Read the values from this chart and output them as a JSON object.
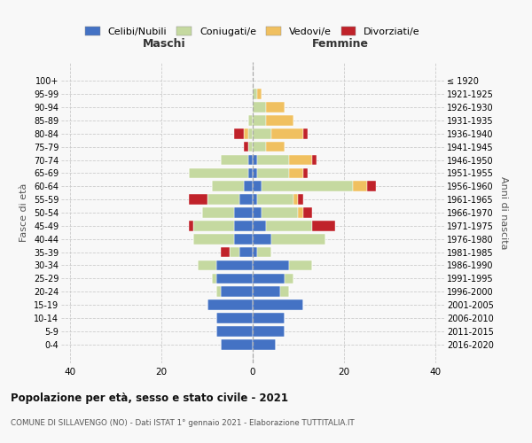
{
  "age_groups": [
    "100+",
    "95-99",
    "90-94",
    "85-89",
    "80-84",
    "75-79",
    "70-74",
    "65-69",
    "60-64",
    "55-59",
    "50-54",
    "45-49",
    "40-44",
    "35-39",
    "30-34",
    "25-29",
    "20-24",
    "15-19",
    "10-14",
    "5-9",
    "0-4"
  ],
  "birth_years": [
    "≤ 1920",
    "1921-1925",
    "1926-1930",
    "1931-1935",
    "1936-1940",
    "1941-1945",
    "1946-1950",
    "1951-1955",
    "1956-1960",
    "1961-1965",
    "1966-1970",
    "1971-1975",
    "1976-1980",
    "1981-1985",
    "1986-1990",
    "1991-1995",
    "1996-2000",
    "2001-2005",
    "2006-2010",
    "2011-2015",
    "2016-2020"
  ],
  "colors": {
    "celibi": "#4472c4",
    "coniugati": "#c5d9a0",
    "vedovi": "#f0c060",
    "divorziati": "#c0222a"
  },
  "males": {
    "celibi": [
      0,
      0,
      0,
      0,
      0,
      0,
      1,
      1,
      2,
      3,
      4,
      4,
      4,
      3,
      8,
      8,
      7,
      10,
      8,
      8,
      7
    ],
    "coniugati": [
      0,
      0,
      0,
      1,
      1,
      1,
      6,
      13,
      7,
      7,
      7,
      9,
      9,
      2,
      4,
      1,
      1,
      0,
      0,
      0,
      0
    ],
    "vedovi": [
      0,
      0,
      0,
      0,
      1,
      0,
      0,
      0,
      0,
      0,
      0,
      0,
      0,
      0,
      0,
      0,
      0,
      0,
      0,
      0,
      0
    ],
    "divorziati": [
      0,
      0,
      0,
      0,
      2,
      1,
      0,
      0,
      0,
      4,
      0,
      1,
      0,
      2,
      0,
      0,
      0,
      0,
      0,
      0,
      0
    ]
  },
  "females": {
    "nubili": [
      0,
      0,
      0,
      0,
      0,
      0,
      1,
      1,
      2,
      1,
      2,
      3,
      4,
      1,
      8,
      7,
      6,
      11,
      7,
      7,
      5
    ],
    "coniugate": [
      0,
      1,
      3,
      3,
      4,
      3,
      7,
      7,
      20,
      8,
      8,
      10,
      12,
      3,
      5,
      2,
      2,
      0,
      0,
      0,
      0
    ],
    "vedove": [
      0,
      1,
      4,
      6,
      7,
      4,
      5,
      3,
      3,
      1,
      1,
      0,
      0,
      0,
      0,
      0,
      0,
      0,
      0,
      0,
      0
    ],
    "divorziate": [
      0,
      0,
      0,
      0,
      1,
      0,
      1,
      1,
      2,
      1,
      2,
      5,
      0,
      0,
      0,
      0,
      0,
      0,
      0,
      0,
      0
    ]
  },
  "title": "Popolazione per età, sesso e stato civile - 2021",
  "subtitle": "COMUNE DI SILLAVENGO (NO) - Dati ISTAT 1° gennaio 2021 - Elaborazione TUTTITALIA.IT",
  "label_maschi": "Maschi",
  "label_femmine": "Femmine",
  "ylabel_left": "Fasce di età",
  "ylabel_right": "Anni di nascita",
  "legend_labels": [
    "Celibi/Nubili",
    "Coniugati/e",
    "Vedovi/e",
    "Divorziati/e"
  ],
  "xlim": 42,
  "background_color": "#f8f8f8"
}
